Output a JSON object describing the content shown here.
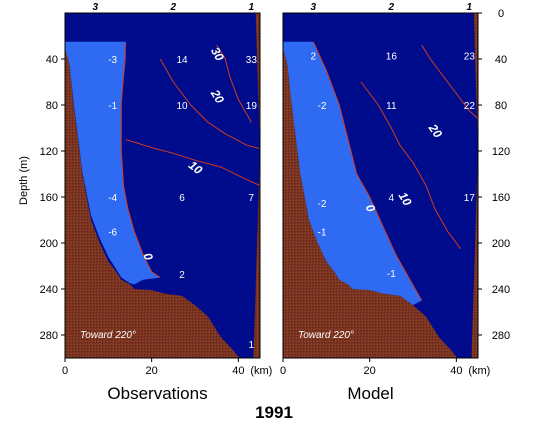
{
  "chart_data": {
    "type": "contour_section",
    "year": "1991",
    "ylabel": "Depth (m)",
    "xunit_label": "(km)",
    "xlim": [
      0,
      45
    ],
    "ylim": [
      0,
      300
    ],
    "x_ticks": [
      "0",
      "20",
      "40"
    ],
    "y_ticks": [
      "40",
      "80",
      "120",
      "160",
      "200",
      "240",
      "280"
    ],
    "y_ticks_right": [
      "0",
      "40",
      "80",
      "120",
      "160",
      "200",
      "240",
      "280"
    ],
    "station_labels": [
      {
        "text": "3",
        "x": 7
      },
      {
        "text": "2",
        "x": 25
      },
      {
        "text": "1",
        "x": 43
      }
    ],
    "colors": {
      "deep_blue": "#000c8c",
      "light_blue": "#2f6af2",
      "seabed": "#7a3421",
      "contour": "#d23a1e"
    },
    "panels": [
      {
        "title": "Observations",
        "note": "Toward 220°",
        "contour_labels": [
          "30",
          "20",
          "10",
          "0"
        ],
        "values": [
          {
            "text": "-3",
            "x": 11,
            "d": 40
          },
          {
            "text": "14",
            "x": 27,
            "d": 40
          },
          {
            "text": "33",
            "x": 43,
            "d": 40
          },
          {
            "text": "-1",
            "x": 11,
            "d": 80
          },
          {
            "text": "10",
            "x": 27,
            "d": 80
          },
          {
            "text": "19",
            "x": 43,
            "d": 80
          },
          {
            "text": "-4",
            "x": 11,
            "d": 160
          },
          {
            "text": "6",
            "x": 27,
            "d": 160
          },
          {
            "text": "7",
            "x": 43,
            "d": 160
          },
          {
            "text": "-6",
            "x": 11,
            "d": 190
          },
          {
            "text": "2",
            "x": 27,
            "d": 227
          },
          {
            "text": "1",
            "x": 43,
            "d": 288
          }
        ]
      },
      {
        "title": "Model",
        "note": "Toward 220°",
        "contour_labels": [
          "20",
          "10",
          "0"
        ],
        "values": [
          {
            "text": "2",
            "x": 7,
            "d": 37
          },
          {
            "text": "16",
            "x": 25,
            "d": 37
          },
          {
            "text": "23",
            "x": 43,
            "d": 37
          },
          {
            "text": "-2",
            "x": 9,
            "d": 80
          },
          {
            "text": "11",
            "x": 25,
            "d": 80
          },
          {
            "text": "22",
            "x": 43,
            "d": 80
          },
          {
            "text": "-2",
            "x": 9,
            "d": 165
          },
          {
            "text": "4",
            "x": 25,
            "d": 160
          },
          {
            "text": "17",
            "x": 43,
            "d": 160
          },
          {
            "text": "-1",
            "x": 9,
            "d": 190
          },
          {
            "text": "-1",
            "x": 25,
            "d": 226
          }
        ]
      }
    ]
  }
}
